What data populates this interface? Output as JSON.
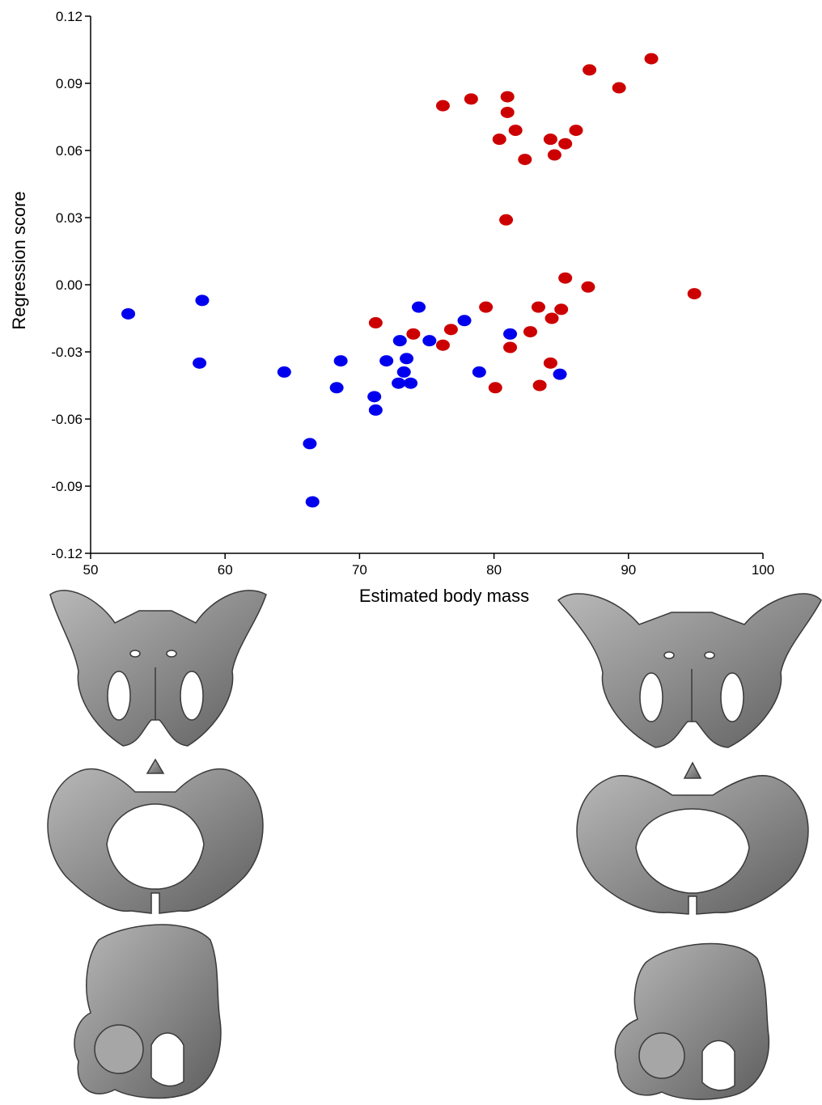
{
  "chart_data": {
    "type": "scatter",
    "title": "",
    "xlabel": "Estimated body mass",
    "ylabel": "Regression score",
    "xlim": [
      50,
      100
    ],
    "ylim": [
      -0.12,
      0.12
    ],
    "x_ticks": [
      "50",
      "60",
      "70",
      "80",
      "90",
      "100"
    ],
    "y_ticks": [
      "0.12",
      "0.09",
      "0.06",
      "0.03",
      "0.00",
      "-0.03",
      "-0.06",
      "-0.09",
      "-0.12"
    ],
    "grid": false,
    "legend": "none",
    "series": [
      {
        "color": "#0000ee",
        "points": [
          [
            52.8,
            -0.013
          ],
          [
            58.3,
            -0.007
          ],
          [
            58.1,
            -0.035
          ],
          [
            64.4,
            -0.039
          ],
          [
            66.3,
            -0.071
          ],
          [
            66.5,
            -0.097
          ],
          [
            68.3,
            -0.046
          ],
          [
            68.6,
            -0.034
          ],
          [
            71.1,
            -0.05
          ],
          [
            71.2,
            -0.056
          ],
          [
            72.0,
            -0.034
          ],
          [
            72.9,
            -0.044
          ],
          [
            73.0,
            -0.025
          ],
          [
            73.3,
            -0.039
          ],
          [
            73.5,
            -0.033
          ],
          [
            73.8,
            -0.044
          ],
          [
            74.4,
            -0.01
          ],
          [
            75.2,
            -0.025
          ],
          [
            77.8,
            -0.016
          ],
          [
            78.9,
            -0.039
          ],
          [
            81.2,
            -0.022
          ],
          [
            84.9,
            -0.04
          ]
        ]
      },
      {
        "color": "#cc0000",
        "points": [
          [
            76.2,
            0.08
          ],
          [
            78.3,
            0.083
          ],
          [
            81.0,
            0.084
          ],
          [
            81.0,
            0.077
          ],
          [
            81.6,
            0.069
          ],
          [
            80.4,
            0.065
          ],
          [
            82.3,
            0.056
          ],
          [
            84.2,
            0.065
          ],
          [
            84.5,
            0.058
          ],
          [
            85.3,
            0.063
          ],
          [
            86.1,
            0.069
          ],
          [
            87.1,
            0.096
          ],
          [
            89.3,
            0.088
          ],
          [
            91.7,
            0.101
          ],
          [
            80.9,
            0.029
          ],
          [
            85.3,
            0.003
          ],
          [
            87.0,
            -0.001
          ],
          [
            94.9,
            -0.004
          ],
          [
            71.2,
            -0.017
          ],
          [
            74.0,
            -0.022
          ],
          [
            76.2,
            -0.027
          ],
          [
            76.8,
            -0.02
          ],
          [
            79.4,
            -0.01
          ],
          [
            80.1,
            -0.046
          ],
          [
            81.2,
            -0.028
          ],
          [
            82.7,
            -0.021
          ],
          [
            83.3,
            -0.01
          ],
          [
            83.4,
            -0.045
          ],
          [
            84.2,
            -0.035
          ],
          [
            84.3,
            -0.015
          ],
          [
            85.0,
            -0.011
          ]
        ]
      }
    ]
  },
  "illustrations": {
    "left_column": [
      "pelvis-anterior-view-icon",
      "pelvis-superior-view-icon",
      "pelvis-lateral-view-icon"
    ],
    "right_column": [
      "pelvis-anterior-view-icon",
      "pelvis-superior-view-icon",
      "pelvis-lateral-view-icon"
    ],
    "fill": "#8f8f8f",
    "stroke": "#3a3a3a"
  }
}
